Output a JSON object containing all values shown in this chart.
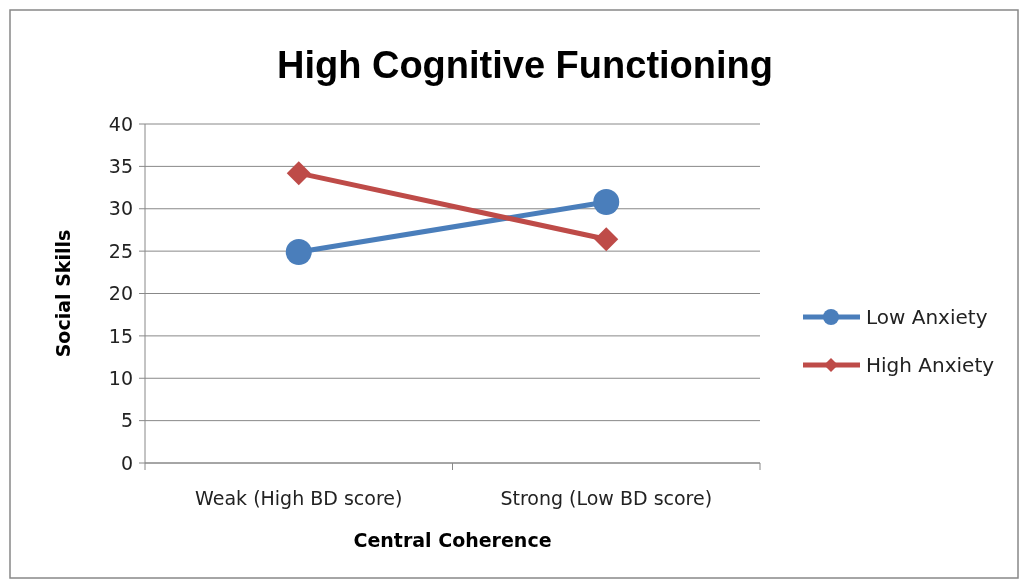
{
  "chart_data": {
    "type": "line",
    "title": "High Cognitive Functioning",
    "xlabel": "Central Coherence",
    "ylabel": "Social Skills",
    "categories": [
      "Weak (High BD score)",
      "Strong (Low BD score)"
    ],
    "series": [
      {
        "name": "Low Anxiety",
        "color": "#4a7ebb",
        "values": [
          24.9,
          30.8
        ],
        "marker": "circle"
      },
      {
        "name": "High Anxiety",
        "color": "#be4b48",
        "values": [
          34.2,
          26.4
        ],
        "marker": "diamond"
      }
    ],
    "ylim": [
      0,
      40
    ],
    "yticks": [
      0,
      5,
      10,
      15,
      20,
      25,
      30,
      35,
      40
    ],
    "grid": "y",
    "legend": "right",
    "line_style": "solid"
  }
}
